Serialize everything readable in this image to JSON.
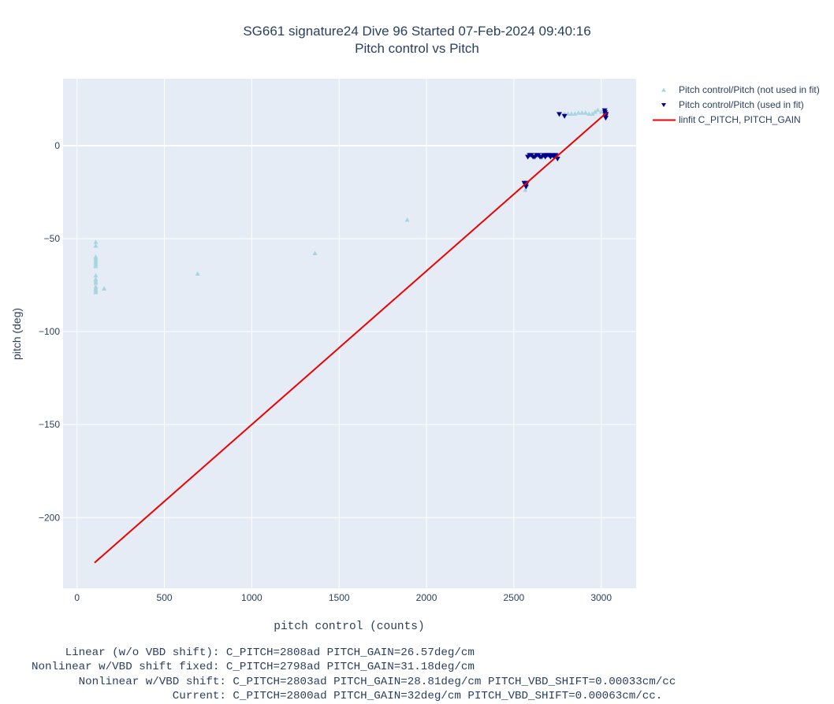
{
  "title": "SG661 signature24 Dive 96 Started 07-Feb-2024 09:40:16",
  "subtitle": "Pitch control vs Pitch",
  "chart_data": {
    "type": "scatter",
    "title": "SG661 signature24 Dive 96 Started 07-Feb-2024 09:40:16",
    "subtitle": "Pitch control vs Pitch",
    "xlabel": "pitch control (counts)",
    "ylabel": "pitch (deg)",
    "xlim": [
      -80,
      3200
    ],
    "ylim": [
      -238,
      36
    ],
    "xticks": [
      0,
      500,
      1000,
      1500,
      2000,
      2500,
      3000
    ],
    "xtick_labels": [
      "0",
      "500",
      "1000",
      "1500",
      "2000",
      "2500",
      "3000"
    ],
    "yticks": [
      0,
      -50,
      -100,
      -150,
      -200
    ],
    "ytick_labels": [
      "0",
      "−50",
      "−100",
      "−150",
      "−200"
    ],
    "grid": true,
    "legend_position": "top-right-outside",
    "series": [
      {
        "name": "Pitch control/Pitch (not used in fit)",
        "marker": "triangle-up",
        "color": "#a6d4e0",
        "x": [
          107,
          107,
          107,
          107,
          107,
          107,
          107,
          107,
          107,
          107,
          107,
          107,
          107,
          107,
          107,
          107,
          155,
          690,
          1362,
          1890,
          2565,
          2790,
          2810,
          2830,
          2850,
          2870,
          2890,
          2910,
          2930,
          2950,
          2965,
          2980,
          3000,
          3015
        ],
        "y": [
          -52,
          -54,
          -60,
          -61,
          -62,
          -63,
          -64,
          -65,
          -70,
          -72,
          -73,
          -74,
          -76,
          -77,
          -78,
          -79,
          -77,
          -69,
          -58,
          -40,
          -24,
          17,
          17,
          17,
          17,
          17.5,
          17.5,
          17.5,
          17,
          17,
          18,
          19,
          18,
          18
        ]
      },
      {
        "name": "Pitch control/Pitch (used in fit)",
        "marker": "triangle-down",
        "color": "#00008b",
        "x": [
          2560,
          2565,
          2570,
          2575,
          2580,
          2590,
          2600,
          2610,
          2620,
          2630,
          2640,
          2650,
          2660,
          2670,
          2680,
          2690,
          2700,
          2710,
          2720,
          2730,
          2740,
          2750,
          2760,
          2790,
          3020,
          3022,
          3024,
          3025,
          3026,
          3028
        ],
        "y": [
          -20,
          -21,
          -22,
          -20,
          -6,
          -5,
          -5,
          -6,
          -6,
          -5,
          -5,
          -6,
          -6,
          -5,
          -6,
          -5,
          -5,
          -6,
          -5,
          -6,
          -5,
          -7,
          17,
          16,
          19,
          18,
          17,
          16,
          15,
          17
        ]
      },
      {
        "name": "linfit C_PITCH, PITCH_GAIN",
        "type": "line",
        "color": "#ee0000",
        "x": [
          100,
          3030
        ],
        "y": [
          -224.3,
          17.7
        ]
      }
    ]
  },
  "notes": [
    "     Linear (w/o VBD shift): C_PITCH=2808ad PITCH_GAIN=26.57deg/cm",
    "Nonlinear w/VBD shift fixed: C_PITCH=2798ad PITCH_GAIN=31.18deg/cm",
    "       Nonlinear w/VBD shift: C_PITCH=2803ad PITCH_GAIN=28.81deg/cm PITCH_VBD_SHIFT=0.00033cm/cc",
    "                     Current: C_PITCH=2800ad PITCH_GAIN=32deg/cm PITCH_VBD_SHIFT=0.00063cm/cc."
  ]
}
